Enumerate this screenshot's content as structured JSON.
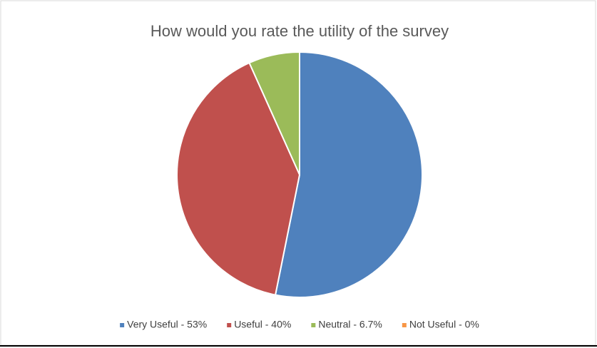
{
  "chart_data": {
    "type": "pie",
    "title": "How would you rate the utility of the survey",
    "categories": [
      "Very Useful - 53%",
      "Useful - 40%",
      "Neutral - 6.7%",
      "Not Useful - 0%"
    ],
    "values": [
      53,
      40,
      6.7,
      0
    ],
    "colors": [
      "#4f81bd",
      "#c0504d",
      "#9bbb59",
      "#f79646"
    ],
    "legend": "bottom"
  }
}
